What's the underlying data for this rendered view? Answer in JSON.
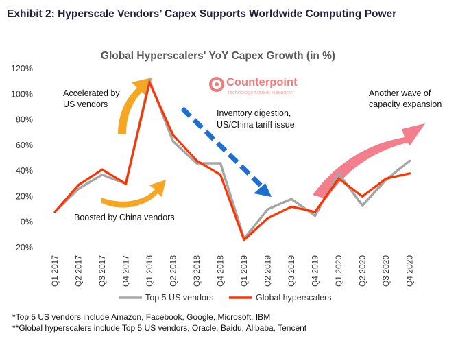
{
  "exhibit_title": "Exhibit 2: Hyperscale Vendors’ Capex Supports Worldwide Computing Power",
  "chart_data": {
    "type": "line",
    "title": "Global Hyperscalers' YoY Capex Growth (in %)",
    "categories": [
      "Q1 2017",
      "Q2 2017",
      "Q3 2017",
      "Q4 2017",
      "Q1 2018",
      "Q2 2018",
      "Q3 2018",
      "Q4 2018",
      "Q1 2019",
      "Q2 2019",
      "Q3 2019",
      "Q4 2019",
      "Q1 2020",
      "Q2 2020",
      "Q3 2020",
      "Q4 2020"
    ],
    "yticks": [
      "120%",
      "100%",
      "80%",
      "60%",
      "40%",
      "20%",
      "0%",
      "-20%"
    ],
    "ylim": [
      -20,
      120
    ],
    "series": [
      {
        "name": "Top 5 US vendors",
        "color": "#a6a6a6",
        "values": [
          8,
          26,
          37,
          30,
          111,
          63,
          46,
          46,
          -13,
          10,
          18,
          5,
          38,
          13,
          33,
          48
        ]
      },
      {
        "name": "Global hyperscalers",
        "color": "#ff3300",
        "values": [
          8,
          29,
          41,
          30,
          109,
          68,
          48,
          37,
          -14,
          3,
          12,
          8,
          34,
          20,
          34,
          38
        ]
      }
    ],
    "annotations": {
      "accelerated": [
        "Accelerated by",
        "US vendors"
      ],
      "boosted": "Boosted by China vendors",
      "inventory": [
        "Inventory digestion,",
        "US/China tariff issue"
      ],
      "another_wave": [
        "Another wave of",
        "capacity expansion"
      ]
    },
    "logo": {
      "name": "Counterpoint",
      "tagline": "Technology Market Research",
      "color": "#f07d7d"
    },
    "grid": false,
    "legend": "bottom"
  },
  "footnotes": [
    "*Top 5 US vendors include Amazon, Facebook, Google, Microsoft, IBM",
    "**Global hyperscalers include Top 5 US vendors, Oracle, Baidu, Alibaba, Tencent"
  ]
}
